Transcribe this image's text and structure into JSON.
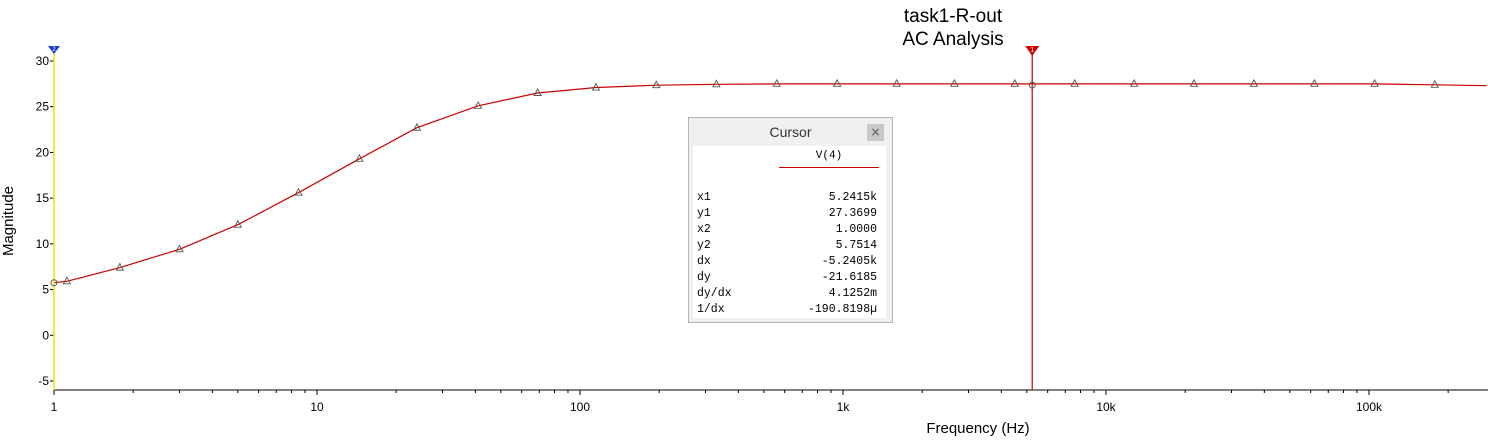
{
  "title": {
    "line1": "task1-R-out",
    "line2": "AC Analysis"
  },
  "colors": {
    "trace": "#cc0000",
    "cursor1": "#cc0000",
    "cursor2": "#1a3ccc",
    "cursor2_line": "#e8e800",
    "axis": "#000000"
  },
  "chart_data": {
    "type": "line",
    "xscale": "log",
    "xlabel": "Frequency (Hz)",
    "ylabel": "Magnitude",
    "xlim": [
      1,
      280000
    ],
    "ylim": [
      -6,
      31
    ],
    "x_ticks": [
      1,
      10,
      100,
      1000,
      10000,
      100000
    ],
    "x_tick_labels": [
      "1",
      "10",
      "100",
      "1k",
      "10k",
      "100k"
    ],
    "y_ticks": [
      30,
      25,
      20,
      15,
      10,
      5,
      0,
      -5
    ],
    "y_tick_labels": [
      "30",
      "25",
      "20",
      "15",
      "10",
      "5",
      "0",
      "-5"
    ],
    "grid": false,
    "series": [
      {
        "name": "V(4)",
        "x": [
          1,
          1.12,
          1.78,
          3,
          5,
          8.5,
          14.5,
          24,
          41,
          69,
          115,
          195,
          330,
          560,
          950,
          1600,
          2650,
          4500,
          7600,
          12800,
          21600,
          36500,
          62000,
          105000,
          178000,
          280000
        ],
        "y": [
          5.75,
          5.9,
          7.4,
          9.4,
          12.1,
          15.6,
          19.3,
          22.7,
          25.1,
          26.5,
          27.1,
          27.35,
          27.45,
          27.5,
          27.5,
          27.5,
          27.5,
          27.5,
          27.5,
          27.5,
          27.5,
          27.5,
          27.5,
          27.5,
          27.4,
          27.3
        ],
        "markers": [
          1.12,
          1.78,
          3,
          5,
          8.5,
          14.5,
          24,
          41,
          69,
          115,
          195,
          330,
          560,
          950,
          1600,
          2650,
          4500,
          7600,
          12800,
          21600,
          36500,
          62000,
          105000,
          178000
        ]
      }
    ],
    "cursors": [
      {
        "id": "1",
        "x": 5241.5,
        "y": 27.3699
      },
      {
        "id": "2",
        "x": 1.0,
        "y": 5.7514
      }
    ]
  },
  "cursor_panel": {
    "title": "Cursor",
    "close_label": "×",
    "series_name": "V(4)",
    "rows": [
      {
        "label": "x1",
        "value": "5.2415k"
      },
      {
        "label": "y1",
        "value": "27.3699"
      },
      {
        "label": "x2",
        "value": "1.0000"
      },
      {
        "label": "y2",
        "value": "5.7514"
      },
      {
        "label": "dx",
        "value": "-5.2405k"
      },
      {
        "label": "dy",
        "value": "-21.6185"
      },
      {
        "label": "dy/dx",
        "value": "4.1252m"
      },
      {
        "label": "1/dx",
        "value": "-190.8198µ"
      }
    ]
  }
}
